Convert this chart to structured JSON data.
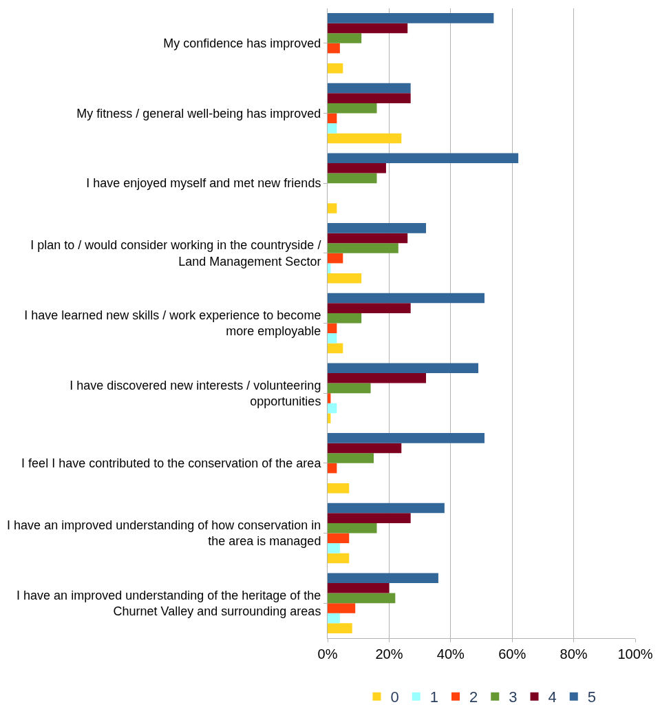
{
  "chart_data": {
    "type": "bar",
    "orientation": "horizontal",
    "categories": [
      "My confidence has improved",
      "My fitness / general well-being has improved",
      "I have enjoyed myself and met new friends",
      "I plan to / would consider working in the countryside / Land Management Sector",
      "I have learned new skills / work experience to become more employable",
      "I have discovered new interests / volunteering opportunities",
      "I feel I have contributed to the conservation of the area",
      "I have an improved understanding of how conservation in the area is managed",
      "I have an improved understanding of the heritage of the Churnet Valley and surrounding areas"
    ],
    "series": [
      {
        "name": "0",
        "color": "#ffd320",
        "values": [
          5,
          24,
          3,
          11,
          5,
          1,
          7,
          7,
          8
        ]
      },
      {
        "name": "1",
        "color": "#99ffff",
        "values": [
          0,
          3,
          0,
          1,
          3,
          3,
          0,
          4,
          4
        ]
      },
      {
        "name": "2",
        "color": "#ff420e",
        "values": [
          4,
          3,
          0,
          5,
          3,
          1,
          3,
          7,
          9
        ]
      },
      {
        "name": "3",
        "color": "#669933",
        "values": [
          11,
          16,
          16,
          23,
          11,
          14,
          15,
          16,
          22
        ]
      },
      {
        "name": "4",
        "color": "#7e0021",
        "values": [
          26,
          27,
          19,
          26,
          27,
          32,
          24,
          27,
          20
        ]
      },
      {
        "name": "5",
        "color": "#336699",
        "values": [
          54,
          27,
          62,
          32,
          51,
          49,
          51,
          38,
          36
        ]
      }
    ],
    "xlim": [
      0,
      100
    ],
    "xticks": [
      {
        "value": 0,
        "label": "0%"
      },
      {
        "value": 20,
        "label": "20%"
      },
      {
        "value": 40,
        "label": "40%"
      },
      {
        "value": 60,
        "label": "60%"
      },
      {
        "value": 80,
        "label": "80%"
      },
      {
        "value": 100,
        "label": "100%"
      }
    ],
    "grid": "x",
    "legend": "bottom"
  }
}
